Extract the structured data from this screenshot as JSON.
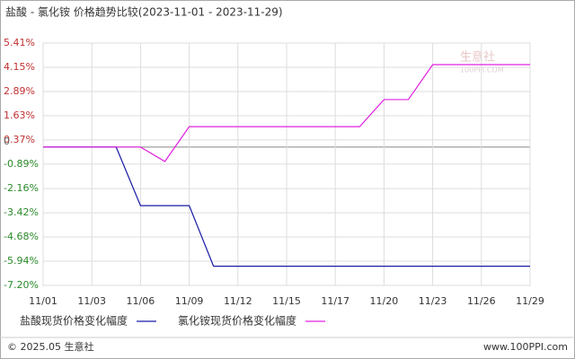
{
  "chart_data": {
    "type": "line",
    "title": "盐酸 - 氯化铵 价格趋势比较(2023-11-01 - 2023-11-29)",
    "categories": [
      "11/01",
      null,
      "11/03",
      null,
      "11/06",
      null,
      "11/09",
      null,
      "11/12",
      null,
      "11/15",
      null,
      "11/17",
      null,
      "11/20",
      null,
      "11/23",
      null,
      "11/26",
      null,
      "11/29"
    ],
    "series": [
      {
        "name": "盐酸现货价格变化幅度",
        "color": "#1a1aa6",
        "values": [
          0,
          0,
          0,
          0,
          -3.05,
          -3.05,
          -3.05,
          -6.2,
          -6.2,
          -6.2,
          -6.2,
          -6.2,
          -6.2,
          -6.2,
          -6.2,
          -6.2,
          -6.2,
          -6.2,
          -6.2,
          -6.2,
          -6.2
        ]
      },
      {
        "name": "氯化铵现货价格变化幅度",
        "color": "#e020e0",
        "values": [
          0,
          0,
          0,
          0,
          0,
          -0.75,
          1.06,
          1.06,
          1.06,
          1.06,
          1.06,
          1.06,
          1.06,
          1.06,
          2.47,
          2.47,
          4.29,
          4.29,
          4.29,
          4.29,
          4.29
        ]
      }
    ],
    "ylim": [
      -7.2,
      5.41
    ],
    "yticks": [
      {
        "value": 5.41,
        "label": "5.41%"
      },
      {
        "value": 4.15,
        "label": "4.15%"
      },
      {
        "value": 2.89,
        "label": "2.89%"
      },
      {
        "value": 1.63,
        "label": "1.63%"
      },
      {
        "value": 0.37,
        "label": "0.37%"
      },
      0,
      {
        "value": -0.89,
        "label": "-0.89%"
      },
      {
        "value": -2.16,
        "label": "-2.16%"
      },
      {
        "value": -3.42,
        "label": "-3.42%"
      },
      {
        "value": -4.68,
        "label": "-4.68%"
      },
      {
        "value": -5.94,
        "label": "-5.94%"
      },
      {
        "value": -7.2,
        "label": "-7.20%"
      }
    ],
    "grid": true,
    "watermark": [
      "生意社",
      "100PPI.COM"
    ],
    "footer": {
      "left": "© 2025.05 生意社",
      "right": "www.100PPI.com"
    }
  }
}
